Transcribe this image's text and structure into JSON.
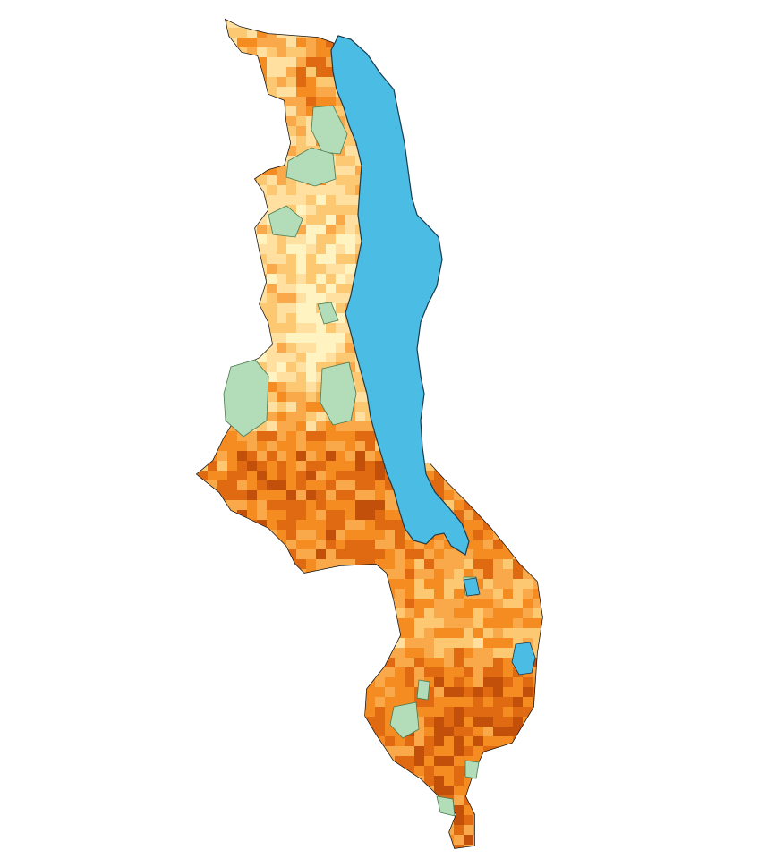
{
  "map": {
    "type": "gridded choropleth (raster cells over country outline)",
    "background_color": "#ffffff",
    "lake_color": "#4bbde4",
    "protected_area_color": "#b3dcb8",
    "border_color": "#222222",
    "palette": [
      "#fff3c2",
      "#ffe0a0",
      "#fdc872",
      "#f9a84a",
      "#f48c22",
      "#e06a12",
      "#c2500a"
    ],
    "features": [
      "country-outline",
      "lake",
      "protected-areas",
      "raster-cells"
    ]
  }
}
